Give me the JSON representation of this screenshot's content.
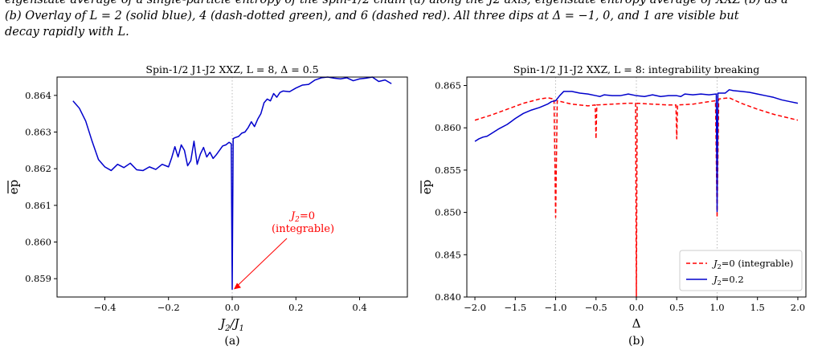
{
  "caption_top": {
    "line_partial": "eigenstate average of a single-particle entropy of the spin-1/2 chain (a) along the J2 axis; eigenstate entropy average of XXZ (b) as a function of Δ",
    "line_full": "(b) Overlay of L = 2 (solid blue), 4 (dash-dotted green), and 6 (dashed red). All three dips at Δ = −1, 0, and 1 are visible but",
    "line_end": "decay rapidly with L."
  },
  "chart_data": [
    {
      "type": "line",
      "title": "Spin-1/2 J1-J2 XXZ, L = 8, Δ = 0.5",
      "xlabel": "J2/J1",
      "ylabel": "ep",
      "sublabel": "(a)",
      "xlim": [
        -0.55,
        0.55
      ],
      "ylim": [
        0.8585,
        0.8645
      ],
      "xticks": [
        -0.4,
        -0.2,
        0.0,
        0.2,
        0.4
      ],
      "xtick_labels": [
        "−0.4",
        "−0.2",
        "0.0",
        "0.2",
        "0.4"
      ],
      "yticks": [
        0.859,
        0.86,
        0.861,
        0.862,
        0.863,
        0.864
      ],
      "ytick_labels": [
        "0.859",
        "0.860",
        "0.861",
        "0.862",
        "0.863",
        "0.864"
      ],
      "vlines": [
        0.0
      ],
      "annotation": {
        "line1": "J2 = 0",
        "line2": "(integrable)",
        "color": "#ff0000",
        "x": 0.0,
        "y": 0.85871
      },
      "series": [
        {
          "color": "#0000cc",
          "style": "solid",
          "points": [
            [
              -0.5,
              0.86385
            ],
            [
              -0.48,
              0.86365
            ],
            [
              -0.46,
              0.8633
            ],
            [
              -0.44,
              0.86275
            ],
            [
              -0.42,
              0.86225
            ],
            [
              -0.4,
              0.86205
            ],
            [
              -0.38,
              0.86195
            ],
            [
              -0.36,
              0.86212
            ],
            [
              -0.34,
              0.86203
            ],
            [
              -0.32,
              0.86215
            ],
            [
              -0.3,
              0.86197
            ],
            [
              -0.28,
              0.86195
            ],
            [
              -0.26,
              0.86205
            ],
            [
              -0.24,
              0.86198
            ],
            [
              -0.22,
              0.86212
            ],
            [
              -0.2,
              0.86205
            ],
            [
              -0.19,
              0.8623
            ],
            [
              -0.18,
              0.8626
            ],
            [
              -0.17,
              0.86232
            ],
            [
              -0.16,
              0.86265
            ],
            [
              -0.15,
              0.8625
            ],
            [
              -0.14,
              0.86208
            ],
            [
              -0.13,
              0.86222
            ],
            [
              -0.12,
              0.86275
            ],
            [
              -0.11,
              0.86212
            ],
            [
              -0.1,
              0.8624
            ],
            [
              -0.09,
              0.86258
            ],
            [
              -0.08,
              0.86232
            ],
            [
              -0.07,
              0.86245
            ],
            [
              -0.06,
              0.86228
            ],
            [
              -0.05,
              0.86238
            ],
            [
              -0.04,
              0.8625
            ],
            [
              -0.03,
              0.86262
            ],
            [
              -0.02,
              0.86265
            ],
            [
              -0.01,
              0.86272
            ],
            [
              -0.003,
              0.86268
            ],
            [
              0.0,
              0.85871
            ],
            [
              0.003,
              0.86282
            ],
            [
              0.01,
              0.86285
            ],
            [
              0.02,
              0.86288
            ],
            [
              0.03,
              0.86297
            ],
            [
              0.04,
              0.863
            ],
            [
              0.05,
              0.86312
            ],
            [
              0.06,
              0.86328
            ],
            [
              0.07,
              0.86315
            ],
            [
              0.08,
              0.86335
            ],
            [
              0.09,
              0.8635
            ],
            [
              0.1,
              0.8638
            ],
            [
              0.11,
              0.8639
            ],
            [
              0.12,
              0.86385
            ],
            [
              0.13,
              0.86405
            ],
            [
              0.14,
              0.86395
            ],
            [
              0.15,
              0.86408
            ],
            [
              0.16,
              0.86412
            ],
            [
              0.18,
              0.8641
            ],
            [
              0.2,
              0.8642
            ],
            [
              0.22,
              0.86428
            ],
            [
              0.24,
              0.8643
            ],
            [
              0.26,
              0.86442
            ],
            [
              0.28,
              0.86448
            ],
            [
              0.3,
              0.8645
            ],
            [
              0.32,
              0.86447
            ],
            [
              0.34,
              0.86445
            ],
            [
              0.36,
              0.86448
            ],
            [
              0.38,
              0.8644
            ],
            [
              0.4,
              0.86445
            ],
            [
              0.42,
              0.86447
            ],
            [
              0.44,
              0.8645
            ],
            [
              0.46,
              0.86438
            ],
            [
              0.48,
              0.86442
            ],
            [
              0.5,
              0.86432
            ]
          ]
        }
      ]
    },
    {
      "type": "line",
      "title": "Spin-1/2 J1-J2 XXZ, L = 8: integrability breaking",
      "xlabel": "Δ",
      "ylabel": "ep",
      "sublabel": "(b)",
      "xlim": [
        -2.1,
        2.1
      ],
      "ylim": [
        0.84,
        0.866
      ],
      "xticks": [
        -2.0,
        -1.5,
        -1.0,
        -0.5,
        0.0,
        0.5,
        1.0,
        1.5,
        2.0
      ],
      "xtick_labels": [
        "−2.0",
        "−1.5",
        "−1.0",
        "−0.5",
        "0.0",
        "0.5",
        "1.0",
        "1.5",
        "2.0"
      ],
      "yticks": [
        0.84,
        0.845,
        0.85,
        0.855,
        0.86,
        0.865
      ],
      "ytick_labels": [
        "0.840",
        "0.845",
        "0.850",
        "0.855",
        "0.860",
        "0.865"
      ],
      "vlines": [
        -1.0,
        0.0,
        1.0
      ],
      "legend": {
        "position": "lower right"
      },
      "series": [
        {
          "name": "J2 = 0 (integrable)",
          "color": "#ff0000",
          "style": "dashed",
          "points": [
            [
              -2.0,
              0.8609
            ],
            [
              -1.8,
              0.8615
            ],
            [
              -1.6,
              0.8622
            ],
            [
              -1.4,
              0.8629
            ],
            [
              -1.2,
              0.8634
            ],
            [
              -1.1,
              0.86355
            ],
            [
              -1.02,
              0.8634
            ],
            [
              -1.0,
              0.8494
            ],
            [
              -0.98,
              0.8632
            ],
            [
              -0.8,
              0.8628
            ],
            [
              -0.6,
              0.8626
            ],
            [
              -0.51,
              0.8627
            ],
            [
              -0.5,
              0.8587
            ],
            [
              -0.49,
              0.8627
            ],
            [
              -0.3,
              0.8628
            ],
            [
              -0.1,
              0.8629
            ],
            [
              -0.01,
              0.8629
            ],
            [
              0.0,
              0.8401
            ],
            [
              0.01,
              0.8629
            ],
            [
              0.2,
              0.8628
            ],
            [
              0.4,
              0.8627
            ],
            [
              0.49,
              0.8627
            ],
            [
              0.5,
              0.8587
            ],
            [
              0.51,
              0.8627
            ],
            [
              0.7,
              0.8628
            ],
            [
              0.9,
              0.8631
            ],
            [
              0.98,
              0.8632
            ],
            [
              1.0,
              0.8494
            ],
            [
              1.02,
              0.8634
            ],
            [
              1.1,
              0.8635
            ],
            [
              1.15,
              0.86355
            ],
            [
              1.3,
              0.8629
            ],
            [
              1.5,
              0.8622
            ],
            [
              1.7,
              0.8616
            ],
            [
              2.0,
              0.8609
            ]
          ]
        },
        {
          "name": "J2 = 0.2",
          "color": "#0000cc",
          "style": "solid",
          "points": [
            [
              -2.0,
              0.8584
            ],
            [
              -1.95,
              0.8587
            ],
            [
              -1.9,
              0.8589
            ],
            [
              -1.85,
              0.859
            ],
            [
              -1.8,
              0.8593
            ],
            [
              -1.7,
              0.8599
            ],
            [
              -1.6,
              0.8604
            ],
            [
              -1.5,
              0.8611
            ],
            [
              -1.4,
              0.8617
            ],
            [
              -1.3,
              0.8621
            ],
            [
              -1.2,
              0.8624
            ],
            [
              -1.1,
              0.8628
            ],
            [
              -1.05,
              0.8631
            ],
            [
              -1.0,
              0.8632
            ],
            [
              -0.95,
              0.8638
            ],
            [
              -0.9,
              0.8643
            ],
            [
              -0.8,
              0.8643
            ],
            [
              -0.7,
              0.8641
            ],
            [
              -0.6,
              0.864
            ],
            [
              -0.5,
              0.8638
            ],
            [
              -0.45,
              0.8637
            ],
            [
              -0.4,
              0.8639
            ],
            [
              -0.3,
              0.8638
            ],
            [
              -0.2,
              0.8638
            ],
            [
              -0.1,
              0.864
            ],
            [
              0.0,
              0.8638
            ],
            [
              0.1,
              0.8637
            ],
            [
              0.2,
              0.8639
            ],
            [
              0.3,
              0.8637
            ],
            [
              0.4,
              0.8638
            ],
            [
              0.5,
              0.8638
            ],
            [
              0.55,
              0.8637
            ],
            [
              0.6,
              0.864
            ],
            [
              0.7,
              0.8639
            ],
            [
              0.8,
              0.864
            ],
            [
              0.9,
              0.8639
            ],
            [
              0.99,
              0.864
            ],
            [
              1.0,
              0.8501
            ],
            [
              1.01,
              0.8641
            ],
            [
              1.1,
              0.8641
            ],
            [
              1.15,
              0.8645
            ],
            [
              1.2,
              0.8644
            ],
            [
              1.3,
              0.8643
            ],
            [
              1.4,
              0.8642
            ],
            [
              1.5,
              0.864
            ],
            [
              1.6,
              0.8638
            ],
            [
              1.7,
              0.8636
            ],
            [
              1.8,
              0.8633
            ],
            [
              1.9,
              0.8631
            ],
            [
              2.0,
              0.8629
            ]
          ]
        }
      ]
    }
  ]
}
